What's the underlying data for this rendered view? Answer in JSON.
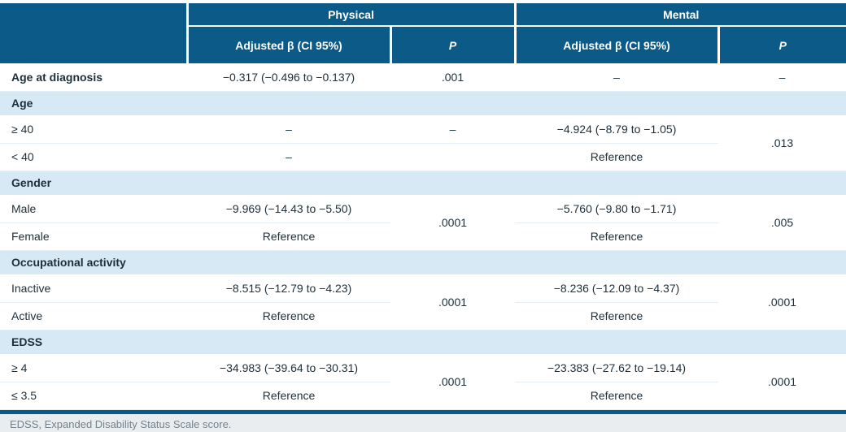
{
  "table": {
    "groups": {
      "physical": "Physical",
      "mental": "Mental"
    },
    "columns": {
      "beta": "Adjusted β (CI 95%)",
      "p": "P"
    },
    "age_diag": {
      "label": "Age at diagnosis",
      "phys_beta": "−0.317 (−0.496 to −0.137)",
      "phys_p": ".001",
      "ment_beta": "–",
      "ment_p": "–"
    },
    "sections": {
      "age": "Age",
      "gender": "Gender",
      "occupation": "Occupational activity",
      "edss": "EDSS"
    },
    "age": {
      "r1": {
        "label": "≥ 40",
        "phys_beta": "–",
        "phys_p": "–",
        "ment_beta": "−4.924 (−8.79 to −1.05)"
      },
      "r2": {
        "label": "< 40",
        "phys_beta": "–",
        "ment_beta": "Reference"
      },
      "ment_p": ".013"
    },
    "gender": {
      "r1": {
        "label": "Male",
        "phys_beta": "−9.969 (−14.43 to −5.50)",
        "ment_beta": "−5.760 (−9.80 to −1.71)"
      },
      "r2": {
        "label": "Female",
        "phys_beta": "Reference",
        "ment_beta": "Reference"
      },
      "phys_p": ".0001",
      "ment_p": ".005"
    },
    "occupation": {
      "r1": {
        "label": "Inactive",
        "phys_beta": "−8.515 (−12.79 to −4.23)",
        "ment_beta": "−8.236 (−12.09 to −4.37)"
      },
      "r2": {
        "label": "Active",
        "phys_beta": "Reference",
        "ment_beta": "Reference"
      },
      "phys_p": ".0001",
      "ment_p": ".0001"
    },
    "edss": {
      "r1": {
        "label": "≥ 4",
        "phys_beta": "−34.983 (−39.64 to −30.31)",
        "ment_beta": "−23.383 (−27.62 to −19.14)"
      },
      "r2": {
        "label": "≤ 3.5",
        "phys_beta": "Reference",
        "ment_beta": "Reference"
      },
      "phys_p": ".0001",
      "ment_p": ".0001"
    },
    "footnote": "EDSS, Expanded Disability Status Scale score."
  },
  "colors": {
    "header-bg": "#0b5a87",
    "header-text": "#ffffff",
    "section-bg": "#d7e9f5",
    "row-line": "#e4eef6",
    "text": "#1c2f3a",
    "bar": "#0b5a87",
    "footnote-bg": "#e9edef",
    "footnote-text": "#75828c"
  }
}
